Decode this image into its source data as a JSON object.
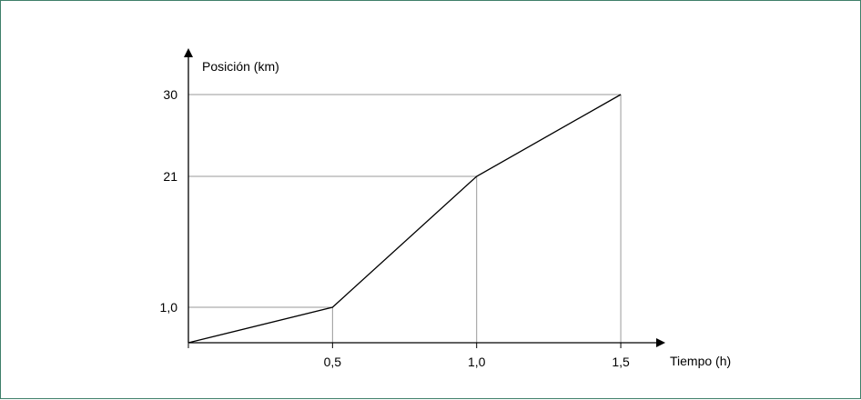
{
  "chart_data": {
    "type": "line",
    "ylabel": "Posición (km)",
    "xlabel": "Tiempo (h)",
    "x": [
      0,
      0.5,
      1.0,
      1.5
    ],
    "y": [
      0,
      1.0,
      21,
      30
    ],
    "x_tick_labels": [
      "0,5",
      "1,0",
      "1,5"
    ],
    "y_tick_labels": [
      "1,0",
      "21",
      "30"
    ],
    "x_tick_values": [
      0.5,
      1.0,
      1.5
    ],
    "y_tick_values": [
      1.0,
      21,
      30
    ],
    "guide_lines": true,
    "colors": {
      "line": "#000000",
      "guides": "#999999",
      "frame": "#3f7f6a"
    }
  }
}
